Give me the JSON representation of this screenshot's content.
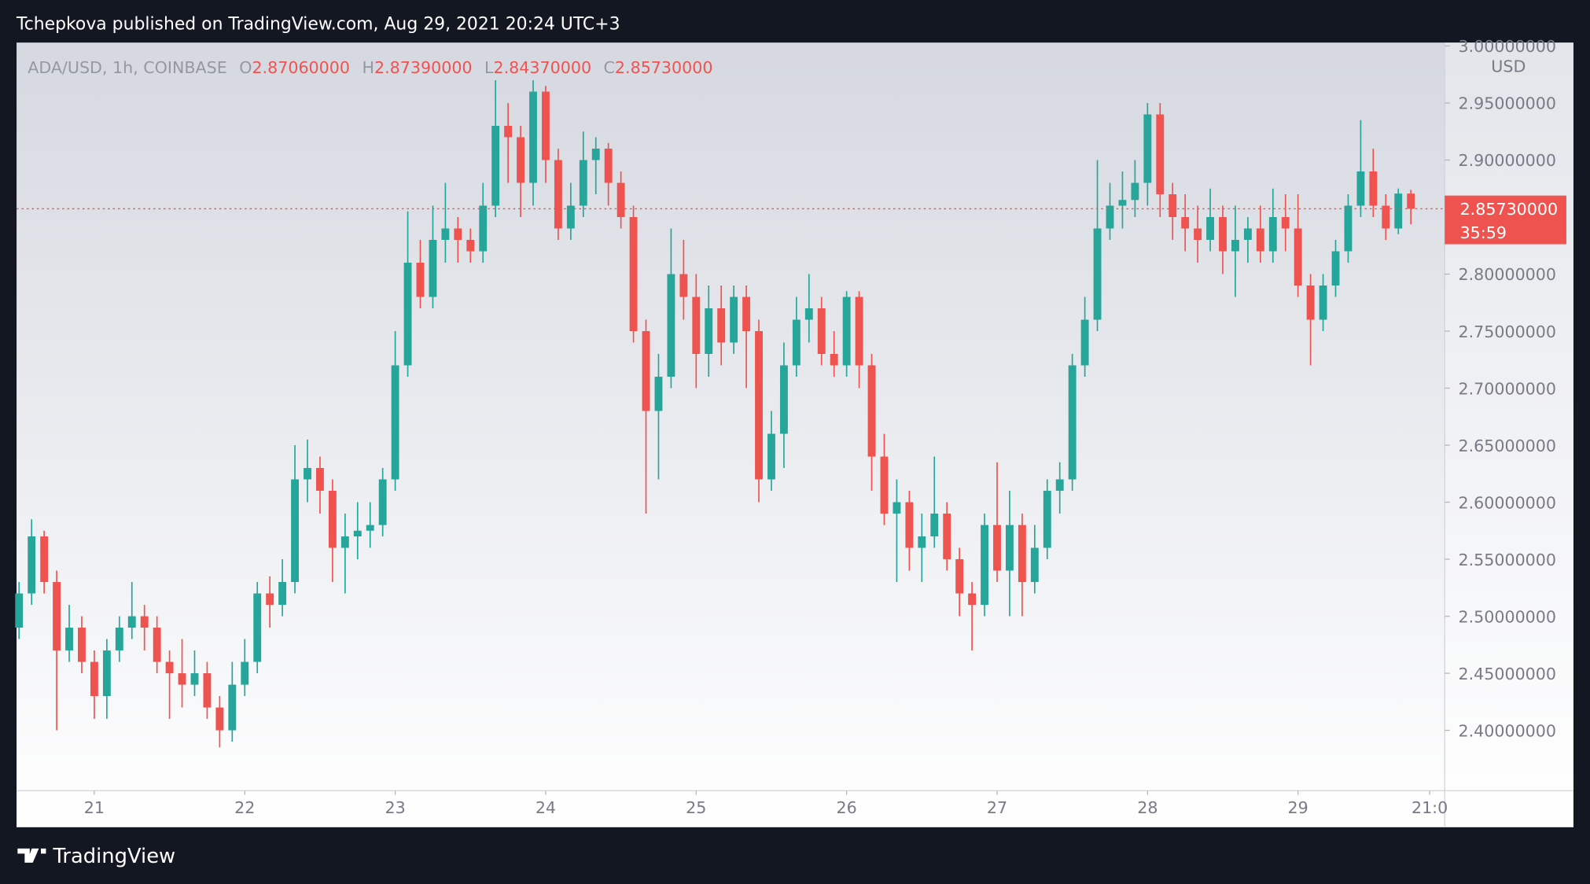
{
  "header": {
    "title": "Tchepkova published on TradingView.com, Aug 29, 2021 20:24 UTC+3",
    "brand": "TradingView"
  },
  "chart_data": {
    "type": "candlestick",
    "symbol": "ADA/USD, 1h, COINBASE",
    "ohlc_legend": [
      [
        "O",
        "2.87060000"
      ],
      [
        "H",
        "2.87390000"
      ],
      [
        "L",
        "2.84370000"
      ],
      [
        "C",
        "2.85730000"
      ]
    ],
    "currency": "USD",
    "last_price_label": "2.85730000",
    "countdown": "35:59",
    "up_color": "#26a69a",
    "down_color": "#ef5350",
    "open": [
      2.49,
      2.52,
      2.57,
      2.53,
      2.47,
      2.49,
      2.46,
      2.43,
      2.47,
      2.49,
      2.5,
      2.49,
      2.46,
      2.45,
      2.44,
      2.45,
      2.42,
      2.4,
      2.44,
      2.46,
      2.52,
      2.51,
      2.53,
      2.62,
      2.63,
      2.61,
      2.56,
      2.57,
      2.575,
      2.58,
      2.62,
      2.72,
      2.81,
      2.78,
      2.83,
      2.84,
      2.83,
      2.82,
      2.86,
      2.93,
      2.92,
      2.88,
      2.96,
      2.9,
      2.84,
      2.86,
      2.9,
      2.91,
      2.88,
      2.85,
      2.75,
      2.68,
      2.71,
      2.8,
      2.78,
      2.73,
      2.77,
      2.74,
      2.78,
      2.75,
      2.62,
      2.66,
      2.72,
      2.76,
      2.77,
      2.73,
      2.72,
      2.78,
      2.72,
      2.64,
      2.59,
      2.6,
      2.56,
      2.57,
      2.59,
      2.55,
      2.52,
      2.51,
      2.58,
      2.54,
      2.58,
      2.53,
      2.56,
      2.61,
      2.62,
      2.72,
      2.76,
      2.84,
      2.86,
      2.865,
      2.88,
      2.94,
      2.87,
      2.85,
      2.84,
      2.83,
      2.85,
      2.82,
      2.83,
      2.84,
      2.82,
      2.85,
      2.84,
      2.79,
      2.76,
      2.79,
      2.82,
      2.86,
      2.89,
      2.86,
      2.84,
      2.8706
    ],
    "high": [
      2.53,
      2.585,
      2.575,
      2.54,
      2.51,
      2.5,
      2.47,
      2.48,
      2.5,
      2.53,
      2.51,
      2.5,
      2.47,
      2.48,
      2.47,
      2.46,
      2.43,
      2.46,
      2.48,
      2.53,
      2.535,
      2.55,
      2.65,
      2.655,
      2.64,
      2.62,
      2.59,
      2.6,
      2.6,
      2.63,
      2.75,
      2.855,
      2.83,
      2.86,
      2.88,
      2.85,
      2.84,
      2.88,
      2.97,
      2.95,
      2.93,
      2.97,
      2.965,
      2.91,
      2.88,
      2.925,
      2.92,
      2.915,
      2.89,
      2.86,
      2.76,
      2.73,
      2.84,
      2.83,
      2.8,
      2.79,
      2.79,
      2.79,
      2.79,
      2.76,
      2.68,
      2.74,
      2.78,
      2.8,
      2.78,
      2.75,
      2.785,
      2.785,
      2.73,
      2.66,
      2.62,
      2.61,
      2.59,
      2.64,
      2.6,
      2.56,
      2.53,
      2.59,
      2.635,
      2.61,
      2.59,
      2.58,
      2.62,
      2.635,
      2.73,
      2.78,
      2.9,
      2.88,
      2.89,
      2.9,
      2.95,
      2.95,
      2.88,
      2.87,
      2.86,
      2.875,
      2.86,
      2.86,
      2.85,
      2.86,
      2.875,
      2.87,
      2.87,
      2.8,
      2.8,
      2.83,
      2.87,
      2.935,
      2.91,
      2.87,
      2.875,
      2.8739
    ],
    "low": [
      2.48,
      2.51,
      2.52,
      2.4,
      2.46,
      2.45,
      2.41,
      2.41,
      2.46,
      2.48,
      2.47,
      2.45,
      2.41,
      2.42,
      2.43,
      2.41,
      2.385,
      2.39,
      2.43,
      2.45,
      2.49,
      2.5,
      2.52,
      2.6,
      2.59,
      2.53,
      2.52,
      2.55,
      2.56,
      2.57,
      2.61,
      2.71,
      2.77,
      2.77,
      2.81,
      2.81,
      2.81,
      2.81,
      2.85,
      2.88,
      2.85,
      2.86,
      2.88,
      2.83,
      2.83,
      2.85,
      2.87,
      2.86,
      2.84,
      2.74,
      2.59,
      2.62,
      2.7,
      2.76,
      2.7,
      2.71,
      2.72,
      2.73,
      2.7,
      2.6,
      2.61,
      2.63,
      2.71,
      2.74,
      2.72,
      2.71,
      2.71,
      2.7,
      2.61,
      2.58,
      2.53,
      2.54,
      2.53,
      2.56,
      2.54,
      2.5,
      2.47,
      2.5,
      2.53,
      2.5,
      2.5,
      2.52,
      2.55,
      2.59,
      2.61,
      2.71,
      2.75,
      2.83,
      2.84,
      2.85,
      2.86,
      2.85,
      2.83,
      2.82,
      2.81,
      2.82,
      2.8,
      2.78,
      2.81,
      2.81,
      2.81,
      2.82,
      2.78,
      2.72,
      2.75,
      2.78,
      2.81,
      2.85,
      2.85,
      2.83,
      2.835,
      2.8437
    ],
    "close": [
      2.52,
      2.57,
      2.53,
      2.47,
      2.49,
      2.46,
      2.43,
      2.47,
      2.49,
      2.5,
      2.49,
      2.46,
      2.45,
      2.44,
      2.45,
      2.42,
      2.4,
      2.44,
      2.46,
      2.52,
      2.51,
      2.53,
      2.62,
      2.63,
      2.61,
      2.56,
      2.57,
      2.575,
      2.58,
      2.62,
      2.72,
      2.81,
      2.78,
      2.83,
      2.84,
      2.83,
      2.82,
      2.86,
      2.93,
      2.92,
      2.88,
      2.96,
      2.9,
      2.84,
      2.86,
      2.9,
      2.91,
      2.88,
      2.85,
      2.75,
      2.68,
      2.71,
      2.8,
      2.78,
      2.73,
      2.77,
      2.74,
      2.78,
      2.75,
      2.62,
      2.66,
      2.72,
      2.76,
      2.77,
      2.73,
      2.72,
      2.78,
      2.72,
      2.64,
      2.59,
      2.6,
      2.56,
      2.57,
      2.59,
      2.55,
      2.52,
      2.51,
      2.58,
      2.54,
      2.58,
      2.53,
      2.56,
      2.61,
      2.62,
      2.72,
      2.76,
      2.84,
      2.86,
      2.865,
      2.88,
      2.94,
      2.87,
      2.85,
      2.84,
      2.83,
      2.85,
      2.82,
      2.83,
      2.84,
      2.82,
      2.85,
      2.84,
      2.79,
      2.76,
      2.79,
      2.82,
      2.86,
      2.89,
      2.86,
      2.84,
      2.8706,
      2.8573
    ],
    "xlim": [
      -0.2,
      113.7
    ],
    "xticks": [
      {
        "value": 6,
        "label": "21"
      },
      {
        "value": 18,
        "label": "22"
      },
      {
        "value": 30,
        "label": "23"
      },
      {
        "value": 42,
        "label": "24"
      },
      {
        "value": 54,
        "label": "25"
      },
      {
        "value": 66,
        "label": "26"
      },
      {
        "value": 78,
        "label": "27"
      },
      {
        "value": 90,
        "label": "28"
      },
      {
        "value": 102,
        "label": "29"
      },
      {
        "value": 112.5,
        "label": "21:0"
      }
    ],
    "ylim": [
      2.347,
      3.003
    ],
    "yticks": [
      {
        "value": 2.4,
        "label": "2.40000000"
      },
      {
        "value": 2.45,
        "label": "2.45000000"
      },
      {
        "value": 2.5,
        "label": "2.50000000"
      },
      {
        "value": 2.55,
        "label": "2.55000000"
      },
      {
        "value": 2.6,
        "label": "2.60000000"
      },
      {
        "value": 2.65,
        "label": "2.65000000"
      },
      {
        "value": 2.7,
        "label": "2.70000000"
      },
      {
        "value": 2.75,
        "label": "2.75000000"
      },
      {
        "value": 2.8,
        "label": "2.80000000"
      },
      {
        "value": 2.85,
        "label": "2.85000000"
      },
      {
        "value": 2.9,
        "label": "2.90000000"
      },
      {
        "value": 2.95,
        "label": "2.95000000"
      },
      {
        "value": 3.0,
        "label": "3.00000000"
      }
    ]
  }
}
